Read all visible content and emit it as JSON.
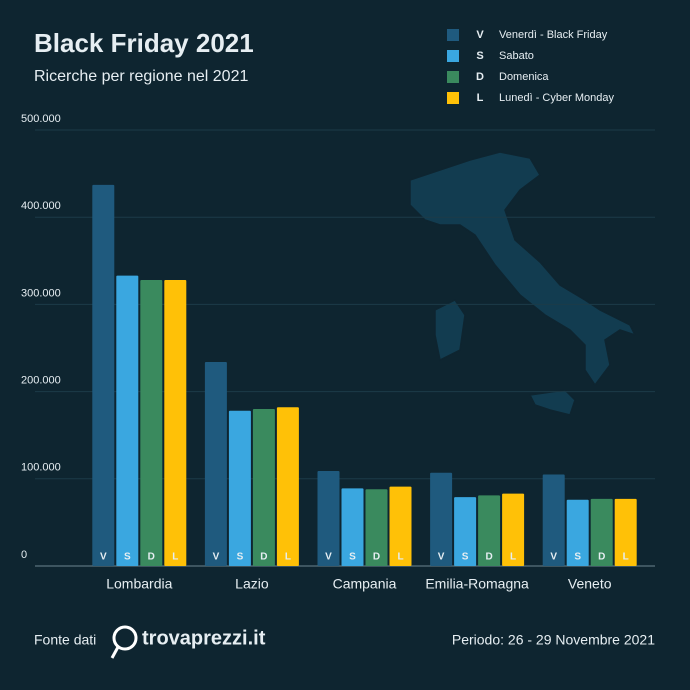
{
  "chart_data": {
    "type": "bar",
    "title": "Black Friday 2021",
    "subtitle": "Ricerche per regione nel 2021",
    "categories": [
      "Lombardia",
      "Lazio",
      "Campania",
      "Emilia-Romagna",
      "Veneto"
    ],
    "series": [
      {
        "short": "V",
        "name": "Venerdì - Black Friday",
        "color": "#1f5a7e",
        "values": [
          437000,
          234000,
          109000,
          107000,
          105000
        ]
      },
      {
        "short": "S",
        "name": "Sabato",
        "color": "#3aa7e0",
        "values": [
          333000,
          178000,
          89000,
          79000,
          76000
        ]
      },
      {
        "short": "D",
        "name": "Domenica",
        "color": "#3a8a5e",
        "values": [
          328000,
          180000,
          88000,
          81000,
          77000
        ]
      },
      {
        "short": "L",
        "name": "Lunedì - Cyber Monday",
        "color": "#ffc107",
        "values": [
          328000,
          182000,
          91000,
          83000,
          77000
        ]
      }
    ],
    "ylim": [
      0,
      500000
    ],
    "yticks": [
      0,
      {
        "value": 100000,
        "label": "100.000"
      },
      {
        "value": 200000,
        "label": "200.000"
      },
      {
        "value": 300000,
        "label": "300.000"
      },
      {
        "value": 400000,
        "label": "400.000"
      },
      {
        "value": 500000,
        "label": "500.000"
      }
    ],
    "grid": true
  },
  "footer": {
    "source": "Fonte dati",
    "brand": "trovaprezzi.it",
    "period": "Periodo: 26 - 29 Novembre 2021"
  }
}
